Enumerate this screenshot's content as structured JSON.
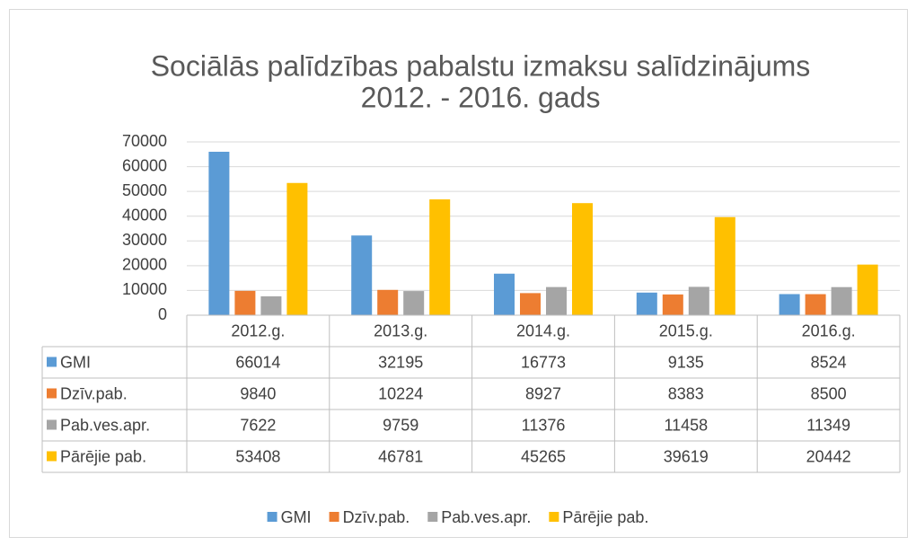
{
  "chart_data": {
    "type": "bar",
    "title": [
      "Sociālās palīdzības pabalstu izmaksu salīdzinājums",
      "2012. - 2016. gads"
    ],
    "categories": [
      "2012.g.",
      "2013.g.",
      "2014.g.",
      "2015.g.",
      "2016.g."
    ],
    "series": [
      {
        "name": "GMI",
        "color": "#5b9bd5",
        "values": [
          66014,
          32195,
          16773,
          9135,
          8524
        ]
      },
      {
        "name": "Dzīv.pab.",
        "color": "#ed7d31",
        "values": [
          9840,
          10224,
          8927,
          8383,
          8500
        ]
      },
      {
        "name": "Pab.ves.apr.",
        "color": "#a5a5a5",
        "values": [
          7622,
          9759,
          11376,
          11458,
          11349
        ]
      },
      {
        "name": "Pārējie pab.",
        "color": "#ffc000",
        "values": [
          53408,
          46781,
          45265,
          39619,
          20442
        ]
      }
    ],
    "ylim": [
      0,
      70000
    ],
    "yticks": [
      0,
      10000,
      20000,
      30000,
      40000,
      50000,
      60000,
      70000
    ],
    "grid": true,
    "legend": "bottom"
  }
}
